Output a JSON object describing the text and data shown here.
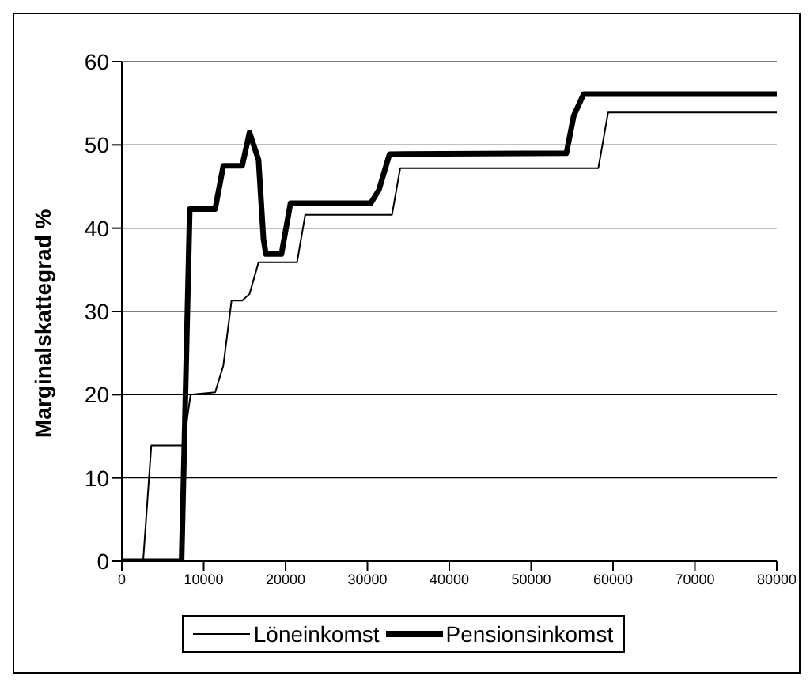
{
  "chart_data": {
    "type": "line",
    "ylabel": "Marginalskattegrad %",
    "xlim": [
      0,
      80000
    ],
    "xticks": [
      0,
      10000,
      20000,
      30000,
      40000,
      50000,
      60000,
      70000,
      80000
    ],
    "ylim": [
      0,
      60
    ],
    "yticks": [
      0,
      10,
      20,
      30,
      40,
      50,
      60
    ],
    "grid": "y",
    "legend": "bottom",
    "marker": "none",
    "line_style": "solid",
    "series": [
      {
        "name": "Löneinkomst",
        "color": "#000000",
        "x": [
          0,
          2600,
          3600,
          7500,
          8400,
          11400,
          12400,
          13400,
          14700,
          15600,
          16700,
          21400,
          22400,
          33000,
          34000,
          58200,
          59400,
          80000
        ],
        "values": [
          0,
          0,
          13.9,
          13.9,
          20,
          20.3,
          23.5,
          31.3,
          31.3,
          32.1,
          35.9,
          35.9,
          41.6,
          41.6,
          47.2,
          47.2,
          53.9,
          53.9
        ]
      },
      {
        "name": "Pensionsinkomst",
        "color": "#000000",
        "x": [
          0,
          7300,
          8300,
          11400,
          12400,
          14700,
          15600,
          16700,
          17300,
          17600,
          19500,
          20600,
          30400,
          31400,
          32700,
          54300,
          55200,
          56400,
          80000
        ],
        "values": [
          0,
          0,
          42.3,
          42.3,
          47.5,
          47.5,
          51.5,
          48.2,
          38.7,
          36.9,
          36.9,
          43,
          43,
          44.6,
          48.9,
          49,
          53.5,
          56.1,
          56.1
        ]
      }
    ]
  }
}
